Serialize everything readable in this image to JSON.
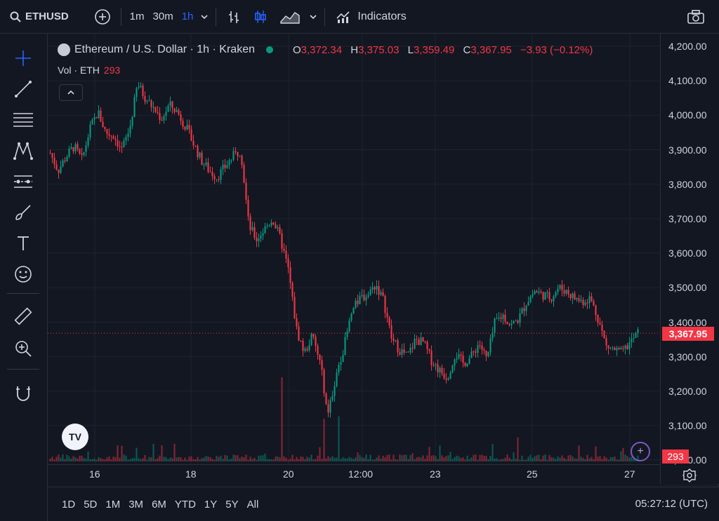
{
  "toolbar": {
    "symbol": "ETHUSD",
    "intervals": [
      "1m",
      "30m",
      "1h"
    ],
    "active_interval": "1h",
    "indicators_label": "Indicators"
  },
  "legend": {
    "title": "Ethereum / U.S. Dollar · 1h · Kraken",
    "open_key": "O",
    "open": "3,372.34",
    "high_key": "H",
    "high": "3,375.03",
    "low_key": "L",
    "low": "3,359.49",
    "close_key": "C",
    "close": "3,367.95",
    "change": "−3.93 (−0.12%)",
    "vol_label": "Vol · ETH",
    "vol_value": "293"
  },
  "price_axis": [
    "4,200.00",
    "4,100.00",
    "4,000.00",
    "3,900.00",
    "3,800.00",
    "3,700.00",
    "3,600.00",
    "3,500.00",
    "3,400.00",
    "3,300.00",
    "3,200.00",
    "3,100.00",
    "3,000.00"
  ],
  "current_price": "3,367.95",
  "volume_badge": "293",
  "time_axis": [
    "16",
    "18",
    "20",
    "12:00",
    "23",
    "25",
    "27"
  ],
  "ranges": [
    "1D",
    "5D",
    "1M",
    "3M",
    "6M",
    "YTD",
    "1Y",
    "5Y",
    "All"
  ],
  "clock": "05:27:12 (UTC)",
  "colors": {
    "up": "#089981",
    "down": "#f23645",
    "accent": "#2962ff",
    "background": "#131722"
  },
  "chart_data": {
    "type": "candlestick",
    "title": "Ethereum / U.S. Dollar · 1h · Kraken",
    "ylim": [
      3000,
      4200
    ],
    "x_ticks": [
      "16",
      "18",
      "20",
      "12:00",
      "23",
      "25",
      "27"
    ],
    "close_path": [
      3890,
      3840,
      3880,
      3910,
      3870,
      3960,
      4010,
      3950,
      3940,
      3900,
      3960,
      4090,
      4050,
      4020,
      3990,
      4030,
      4010,
      3970,
      3920,
      3870,
      3840,
      3820,
      3850,
      3880,
      3900,
      3680,
      3640,
      3670,
      3700,
      3640,
      3550,
      3380,
      3310,
      3360,
      3280,
      3130,
      3250,
      3330,
      3430,
      3470,
      3480,
      3510,
      3460,
      3350,
      3320,
      3300,
      3350,
      3340,
      3290,
      3260,
      3240,
      3310,
      3280,
      3300,
      3340,
      3290,
      3400,
      3420,
      3390,
      3410,
      3460,
      3490,
      3480,
      3470,
      3500,
      3490,
      3470,
      3460,
      3470,
      3410,
      3330,
      3320,
      3310,
      3340,
      3368
    ],
    "volume_note": "volume bars along bottom"
  }
}
